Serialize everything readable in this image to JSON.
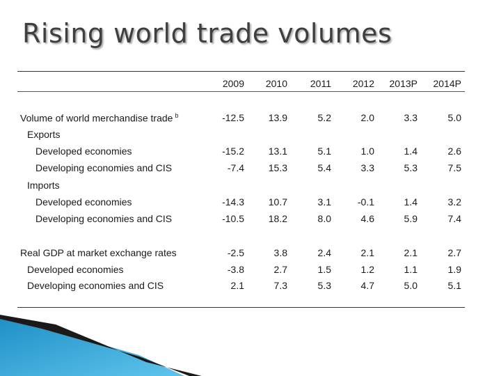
{
  "title": "Rising world trade volumes",
  "table": {
    "columns": [
      "2009",
      "2010",
      "2011",
      "2012",
      "2013P",
      "2014P"
    ],
    "rows": [
      {
        "label": "Volume of world merchandise trade",
        "sup": "b",
        "indent": 0,
        "values": [
          "-12.5",
          "13.9",
          "5.2",
          "2.0",
          "3.3",
          "5.0"
        ]
      },
      {
        "label": "Exports",
        "indent": 1,
        "values": [
          "",
          "",
          "",
          "",
          "",
          ""
        ]
      },
      {
        "label": "Developed economies",
        "indent": 2,
        "values": [
          "-15.2",
          "13.1",
          "5.1",
          "1.0",
          "1.4",
          "2.6"
        ]
      },
      {
        "label": "Developing economies and CIS",
        "indent": 2,
        "values": [
          "-7.4",
          "15.3",
          "5.4",
          "3.3",
          "5.3",
          "7.5"
        ]
      },
      {
        "label": "Imports",
        "indent": 1,
        "values": [
          "",
          "",
          "",
          "",
          "",
          ""
        ]
      },
      {
        "label": "Developed economies",
        "indent": 2,
        "values": [
          "-14.3",
          "10.7",
          "3.1",
          "-0.1",
          "1.4",
          "3.2"
        ]
      },
      {
        "label": "Developing economies and CIS",
        "indent": 2,
        "values": [
          "-10.5",
          "18.2",
          "8.0",
          "4.6",
          "5.9",
          "7.4"
        ]
      },
      {
        "label": "Real GDP at market exchange rates",
        "indent": 0,
        "values": [
          "-2.5",
          "3.8",
          "2.4",
          "2.1",
          "2.1",
          "2.7"
        ]
      },
      {
        "label": "Developed economies",
        "indent": 1,
        "values": [
          "-3.8",
          "2.7",
          "1.5",
          "1.2",
          "1.1",
          "1.9"
        ]
      },
      {
        "label": "Developing economies and CIS",
        "indent": 1,
        "values": [
          "2.1",
          "7.3",
          "5.3",
          "4.7",
          "5.0",
          "5.1"
        ]
      }
    ]
  },
  "colors": {
    "title": "#3f3f3f",
    "deco_blue": "#29a3d8",
    "deco_dark": "#1a1a1a"
  }
}
